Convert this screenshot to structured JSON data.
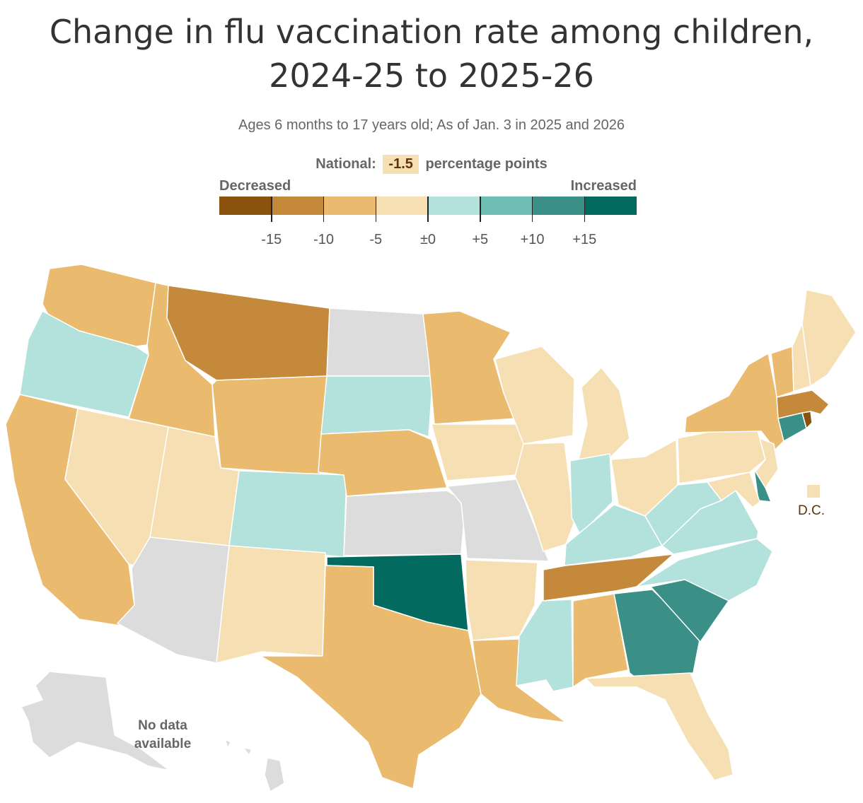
{
  "title_line1": "Change in flu vaccination rate among children,",
  "title_line2": "2024-25 to 2025-26",
  "subtitle": "Ages 6 months to 17 years old; As of Jan. 3 in 2025 and 2026",
  "national": {
    "label": "National:",
    "value": "-1.5",
    "unit": "percentage points"
  },
  "legend": {
    "decreased_label": "Decreased",
    "increased_label": "Increased",
    "bins": [
      "#8a520e",
      "#c4893a",
      "#eaba6f",
      "#f5dfb3",
      "#b3e1dc",
      "#6ebeb4",
      "#3a9087",
      "#036a60"
    ],
    "ticks": [
      "-15",
      "-10",
      "-5",
      "±0",
      "+5",
      "+10",
      "+15"
    ]
  },
  "colors": {
    "nodata": "#dcdcdc",
    "border": "#ffffff"
  },
  "dc_label": "D.C.",
  "dc_bin": 3,
  "nodata_label_line1": "No data",
  "nodata_label_line2": "available",
  "states": [
    {
      "name": "WA",
      "bin": 2
    },
    {
      "name": "OR",
      "bin": 4
    },
    {
      "name": "CA",
      "bin": 2
    },
    {
      "name": "ID",
      "bin": 2
    },
    {
      "name": "NV",
      "bin": 3
    },
    {
      "name": "UT",
      "bin": 3
    },
    {
      "name": "AZ",
      "bin": null
    },
    {
      "name": "MT",
      "bin": 1
    },
    {
      "name": "WY",
      "bin": 2
    },
    {
      "name": "CO",
      "bin": 4
    },
    {
      "name": "NM",
      "bin": 3
    },
    {
      "name": "ND",
      "bin": null
    },
    {
      "name": "SD",
      "bin": 4
    },
    {
      "name": "NE",
      "bin": 2
    },
    {
      "name": "KS",
      "bin": null
    },
    {
      "name": "OK",
      "bin": 7
    },
    {
      "name": "TX",
      "bin": 2
    },
    {
      "name": "MN",
      "bin": 2
    },
    {
      "name": "IA",
      "bin": 3
    },
    {
      "name": "MO",
      "bin": null
    },
    {
      "name": "AR",
      "bin": 3
    },
    {
      "name": "LA",
      "bin": 2
    },
    {
      "name": "WI",
      "bin": 3
    },
    {
      "name": "IL",
      "bin": 3
    },
    {
      "name": "MI",
      "bin": 3
    },
    {
      "name": "IN",
      "bin": 4
    },
    {
      "name": "OH",
      "bin": 3
    },
    {
      "name": "KY",
      "bin": 4
    },
    {
      "name": "TN",
      "bin": 1
    },
    {
      "name": "MS",
      "bin": 4
    },
    {
      "name": "AL",
      "bin": 2
    },
    {
      "name": "GA",
      "bin": 6
    },
    {
      "name": "FL",
      "bin": 3
    },
    {
      "name": "SC",
      "bin": 6
    },
    {
      "name": "NC",
      "bin": 4
    },
    {
      "name": "VA",
      "bin": 4
    },
    {
      "name": "WV",
      "bin": 4
    },
    {
      "name": "PA",
      "bin": 3
    },
    {
      "name": "NY",
      "bin": 2
    },
    {
      "name": "NJ",
      "bin": 3
    },
    {
      "name": "DE",
      "bin": 6
    },
    {
      "name": "MD",
      "bin": 3
    },
    {
      "name": "CT",
      "bin": 6
    },
    {
      "name": "RI",
      "bin": 0
    },
    {
      "name": "MA",
      "bin": 1
    },
    {
      "name": "VT",
      "bin": 2
    },
    {
      "name": "NH",
      "bin": 3
    },
    {
      "name": "ME",
      "bin": 3
    },
    {
      "name": "AK",
      "bin": null
    },
    {
      "name": "HI",
      "bin": null
    }
  ]
}
